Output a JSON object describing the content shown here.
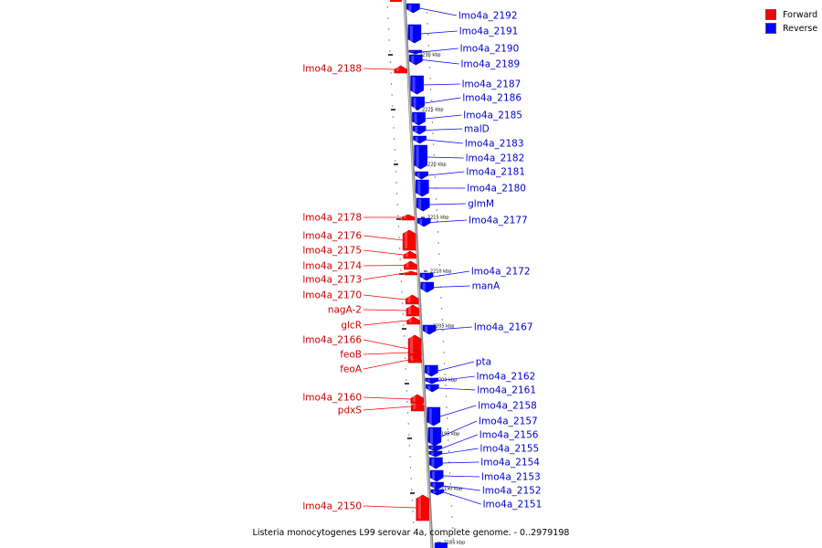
{
  "legend": {
    "forward": {
      "label": "Forward",
      "color": "#ff0000"
    },
    "reverse": {
      "label": "Reverse",
      "color": "#0000ff"
    }
  },
  "caption": "Listeria monocytogenes L99 serovar 4a, complete genome. - 0..2979198",
  "ticks": [
    {
      "kbp": 2230,
      "label": "2230 kbp"
    },
    {
      "kbp": 2225,
      "label": "2225 kbp"
    },
    {
      "kbp": 2220,
      "label": "2220 kbp"
    },
    {
      "kbp": 2215,
      "label": "2215 kbp"
    },
    {
      "kbp": 2210,
      "label": "2210 kbp"
    },
    {
      "kbp": 2205,
      "label": "2205 kbp"
    },
    {
      "kbp": 2200,
      "label": "2200 kbp"
    },
    {
      "kbp": 2195,
      "label": "2195 kbp"
    },
    {
      "kbp": 2190,
      "label": "2190 kbp"
    },
    {
      "kbp": 2185,
      "label": "2185 kbp"
    }
  ],
  "genes": [
    {
      "name": "lmo4a_2192",
      "strand": "reverse"
    },
    {
      "name": "lmo4a_2191",
      "strand": "reverse"
    },
    {
      "name": "lmo4a_2190",
      "strand": "reverse"
    },
    {
      "name": "lmo4a_2189",
      "strand": "reverse"
    },
    {
      "name": "lmo4a_2188",
      "strand": "forward"
    },
    {
      "name": "lmo4a_2187",
      "strand": "reverse"
    },
    {
      "name": "lmo4a_2186",
      "strand": "reverse"
    },
    {
      "name": "lmo4a_2185",
      "strand": "reverse"
    },
    {
      "name": "malD",
      "strand": "reverse"
    },
    {
      "name": "lmo4a_2183",
      "strand": "reverse"
    },
    {
      "name": "lmo4a_2182",
      "strand": "reverse"
    },
    {
      "name": "lmo4a_2181",
      "strand": "reverse"
    },
    {
      "name": "lmo4a_2180",
      "strand": "reverse"
    },
    {
      "name": "glmM",
      "strand": "reverse"
    },
    {
      "name": "lmo4a_2178",
      "strand": "forward"
    },
    {
      "name": "lmo4a_2177",
      "strand": "reverse"
    },
    {
      "name": "lmo4a_2176",
      "strand": "forward"
    },
    {
      "name": "lmo4a_2175",
      "strand": "forward"
    },
    {
      "name": "lmo4a_2174",
      "strand": "forward"
    },
    {
      "name": "lmo4a_2173",
      "strand": "forward"
    },
    {
      "name": "lmo4a_2172",
      "strand": "reverse"
    },
    {
      "name": "manA",
      "strand": "reverse"
    },
    {
      "name": "lmo4a_2170",
      "strand": "forward"
    },
    {
      "name": "nagA-2",
      "strand": "forward"
    },
    {
      "name": "glcR",
      "strand": "forward"
    },
    {
      "name": "lmo4a_2167",
      "strand": "reverse"
    },
    {
      "name": "lmo4a_2166",
      "strand": "forward"
    },
    {
      "name": "feoB",
      "strand": "forward"
    },
    {
      "name": "feoA",
      "strand": "forward"
    },
    {
      "name": "pta",
      "strand": "reverse"
    },
    {
      "name": "lmo4a_2162",
      "strand": "reverse"
    },
    {
      "name": "lmo4a_2161",
      "strand": "reverse"
    },
    {
      "name": "lmo4a_2160",
      "strand": "forward"
    },
    {
      "name": "lmo4a_2158",
      "strand": "reverse"
    },
    {
      "name": "pdxS",
      "strand": "forward"
    },
    {
      "name": "lmo4a_2157",
      "strand": "reverse"
    },
    {
      "name": "lmo4a_2156",
      "strand": "reverse"
    },
    {
      "name": "lmo4a_2155",
      "strand": "reverse"
    },
    {
      "name": "lmo4a_2154",
      "strand": "reverse"
    },
    {
      "name": "lmo4a_2153",
      "strand": "reverse"
    },
    {
      "name": "lmo4a_2152",
      "strand": "reverse"
    },
    {
      "name": "lmo4a_2151",
      "strand": "reverse"
    },
    {
      "name": "lmo4a_2150",
      "strand": "forward"
    }
  ]
}
